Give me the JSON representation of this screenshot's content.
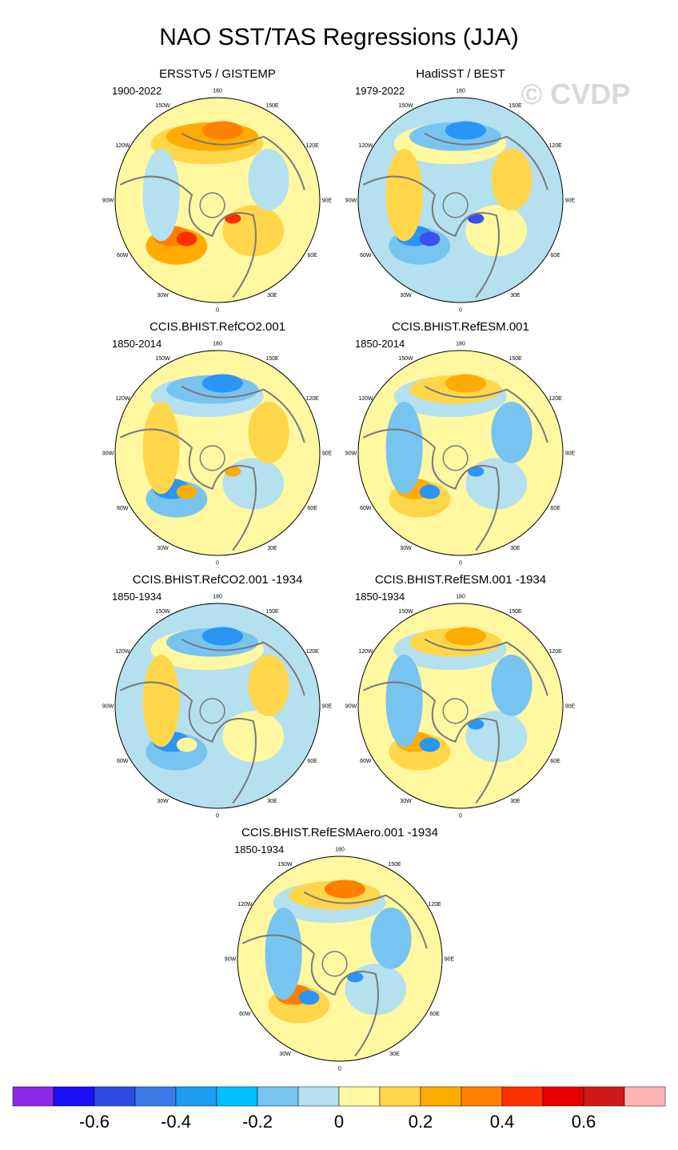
{
  "figure": {
    "title": "NAO SST/TAS Regressions (JJA)",
    "watermark": "© CVDP"
  },
  "lon_labels": [
    "180",
    "150E",
    "120E",
    "90E",
    "60E",
    "30E",
    "0",
    "30W",
    "60W",
    "90W",
    "120W",
    "150W"
  ],
  "panels": [
    {
      "id": "p1",
      "title": "ERSSTv5 / GISTEMP",
      "period": "1900-2022",
      "colors": {
        "base": "#fff8a0",
        "a": "#ffd64a",
        "b": "#ffac00",
        "c": "#ff7f00",
        "d": "#b4e0f0",
        "e": "#ff3000"
      }
    },
    {
      "id": "p2",
      "title": "HadiSST / BEST",
      "period": "1979-2022",
      "colors": {
        "base": "#b4e0f0",
        "a": "#fff8a0",
        "b": "#78c4f0",
        "c": "#2b95f5",
        "d": "#ffd64a",
        "e": "#3a4ff0"
      }
    },
    {
      "id": "p3",
      "title": "CCIS.BHIST.RefCO2.001",
      "period": "1850-2014",
      "colors": {
        "base": "#fff8a0",
        "a": "#b4e0f0",
        "b": "#78c4f0",
        "c": "#2b95f5",
        "d": "#ffd64a",
        "e": "#ffac00"
      }
    },
    {
      "id": "p4",
      "title": "CCIS.BHIST.RefESM.001",
      "period": "1850-2014",
      "colors": {
        "base": "#fff8a0",
        "a": "#b4e0f0",
        "b": "#ffd64a",
        "c": "#ffac00",
        "d": "#78c4f0",
        "e": "#2b95f5"
      }
    },
    {
      "id": "p5",
      "title": "CCIS.BHIST.RefCO2.001 -1934",
      "period": "1850-1934",
      "colors": {
        "base": "#b4e0f0",
        "a": "#fff8a0",
        "b": "#78c4f0",
        "c": "#2b95f5",
        "d": "#ffd64a",
        "e": "#fff8a0"
      }
    },
    {
      "id": "p6",
      "title": "CCIS.BHIST.RefESM.001 -1934",
      "period": "1850-1934",
      "colors": {
        "base": "#fff8a0",
        "a": "#b4e0f0",
        "b": "#ffd64a",
        "c": "#ffac00",
        "d": "#78c4f0",
        "e": "#2b95f5"
      }
    },
    {
      "id": "p7",
      "title": "CCIS.BHIST.RefESMAero.001 -1934",
      "period": "1850-1934",
      "colors": {
        "base": "#fff8a0",
        "a": "#b4e0f0",
        "b": "#ffd64a",
        "c": "#ff7f00",
        "d": "#78c4f0",
        "e": "#2b95f5"
      }
    }
  ],
  "colorbar": {
    "colors": [
      "#8a2ae8",
      "#1a0ff5",
      "#2d4be8",
      "#3a7ae8",
      "#1c9cf5",
      "#00c0ff",
      "#78c4f0",
      "#b4e0f0",
      "#fff8a0",
      "#ffd64a",
      "#ffac00",
      "#ff7f00",
      "#ff3000",
      "#e80000",
      "#d01a1a",
      "#ffb4b4"
    ],
    "tick_labels": [
      "-0.6",
      "-0.4",
      "-0.2",
      "0",
      "0.2",
      "0.4",
      "0.6"
    ]
  }
}
